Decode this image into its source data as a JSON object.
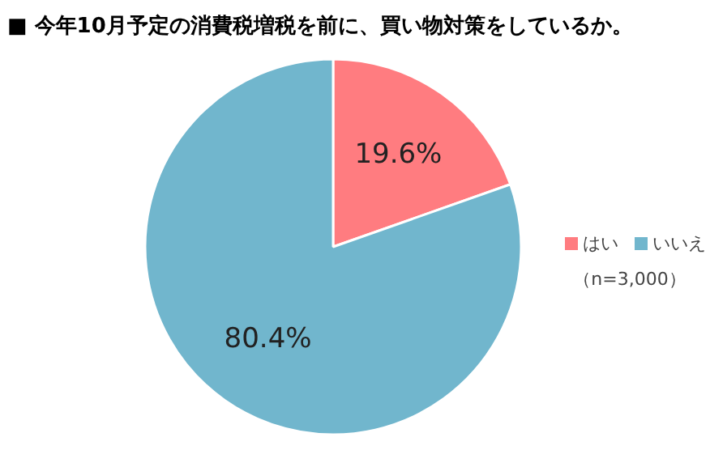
{
  "chart_data": {
    "type": "pie",
    "title": "■ 今年10月予定の消費税増税を前に、買い物対策をしているか。",
    "categories": [
      "はい",
      "いいえ"
    ],
    "values": [
      19.6,
      80.4
    ],
    "colors": [
      "#ff7c80",
      "#71b6cd"
    ],
    "value_labels": [
      "19.6%",
      "80.4%"
    ],
    "legend": "right",
    "annotations": [
      "（n=3,000）"
    ]
  }
}
